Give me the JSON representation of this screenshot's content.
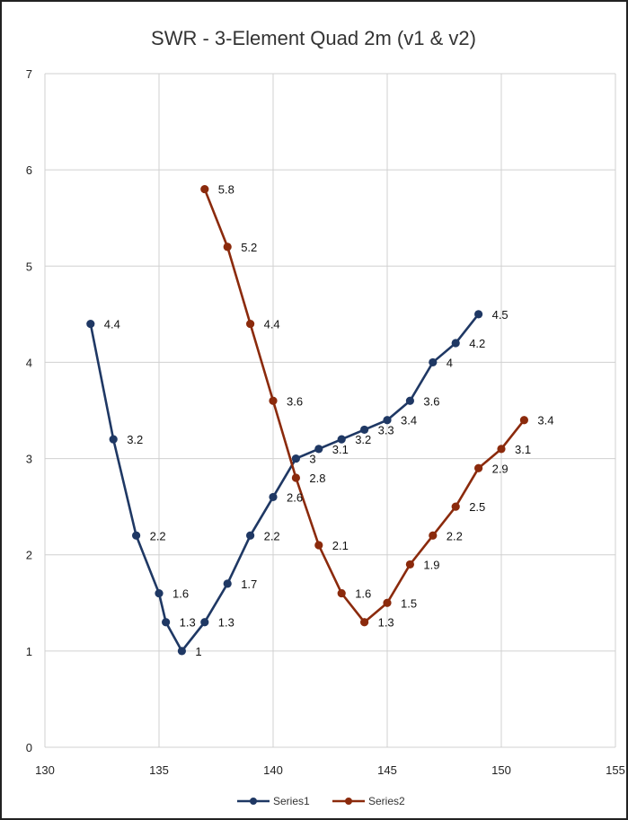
{
  "chart_data": {
    "type": "line",
    "title": "SWR - 3-Element Quad 2m (v1 & v2)",
    "xlabel": "",
    "ylabel": "",
    "xlim": [
      130,
      155
    ],
    "ylim": [
      0,
      7
    ],
    "x_ticks": [
      130,
      135,
      140,
      145,
      150,
      155
    ],
    "y_ticks": [
      0,
      1,
      2,
      3,
      4,
      5,
      6,
      7
    ],
    "grid": true,
    "legend_position": "bottom",
    "series": [
      {
        "name": "Series1",
        "color": "#1f3864",
        "points": [
          {
            "x": 132,
            "y": 4.4
          },
          {
            "x": 133,
            "y": 3.2
          },
          {
            "x": 134,
            "y": 2.2
          },
          {
            "x": 135,
            "y": 1.6
          },
          {
            "x": 135.3,
            "y": 1.3
          },
          {
            "x": 136,
            "y": 1
          },
          {
            "x": 137,
            "y": 1.3
          },
          {
            "x": 138,
            "y": 1.7
          },
          {
            "x": 139,
            "y": 2.2
          },
          {
            "x": 140,
            "y": 2.6
          },
          {
            "x": 141,
            "y": 3
          },
          {
            "x": 142,
            "y": 3.1
          },
          {
            "x": 143,
            "y": 3.2
          },
          {
            "x": 144,
            "y": 3.3
          },
          {
            "x": 145,
            "y": 3.4
          },
          {
            "x": 146,
            "y": 3.6
          },
          {
            "x": 147,
            "y": 4
          },
          {
            "x": 148,
            "y": 4.2
          },
          {
            "x": 149,
            "y": 4.5
          }
        ]
      },
      {
        "name": "Series2",
        "color": "#8b2a0c",
        "points": [
          {
            "x": 137,
            "y": 5.8
          },
          {
            "x": 138,
            "y": 5.2
          },
          {
            "x": 139,
            "y": 4.4
          },
          {
            "x": 140,
            "y": 3.6
          },
          {
            "x": 141,
            "y": 2.8
          },
          {
            "x": 142,
            "y": 2.1
          },
          {
            "x": 143,
            "y": 1.6
          },
          {
            "x": 144,
            "y": 1.3
          },
          {
            "x": 145,
            "y": 1.5
          },
          {
            "x": 146,
            "y": 1.9
          },
          {
            "x": 147,
            "y": 2.2
          },
          {
            "x": 148,
            "y": 2.5
          },
          {
            "x": 149,
            "y": 2.9
          },
          {
            "x": 150,
            "y": 3.1
          },
          {
            "x": 151,
            "y": 3.4
          }
        ]
      }
    ]
  }
}
